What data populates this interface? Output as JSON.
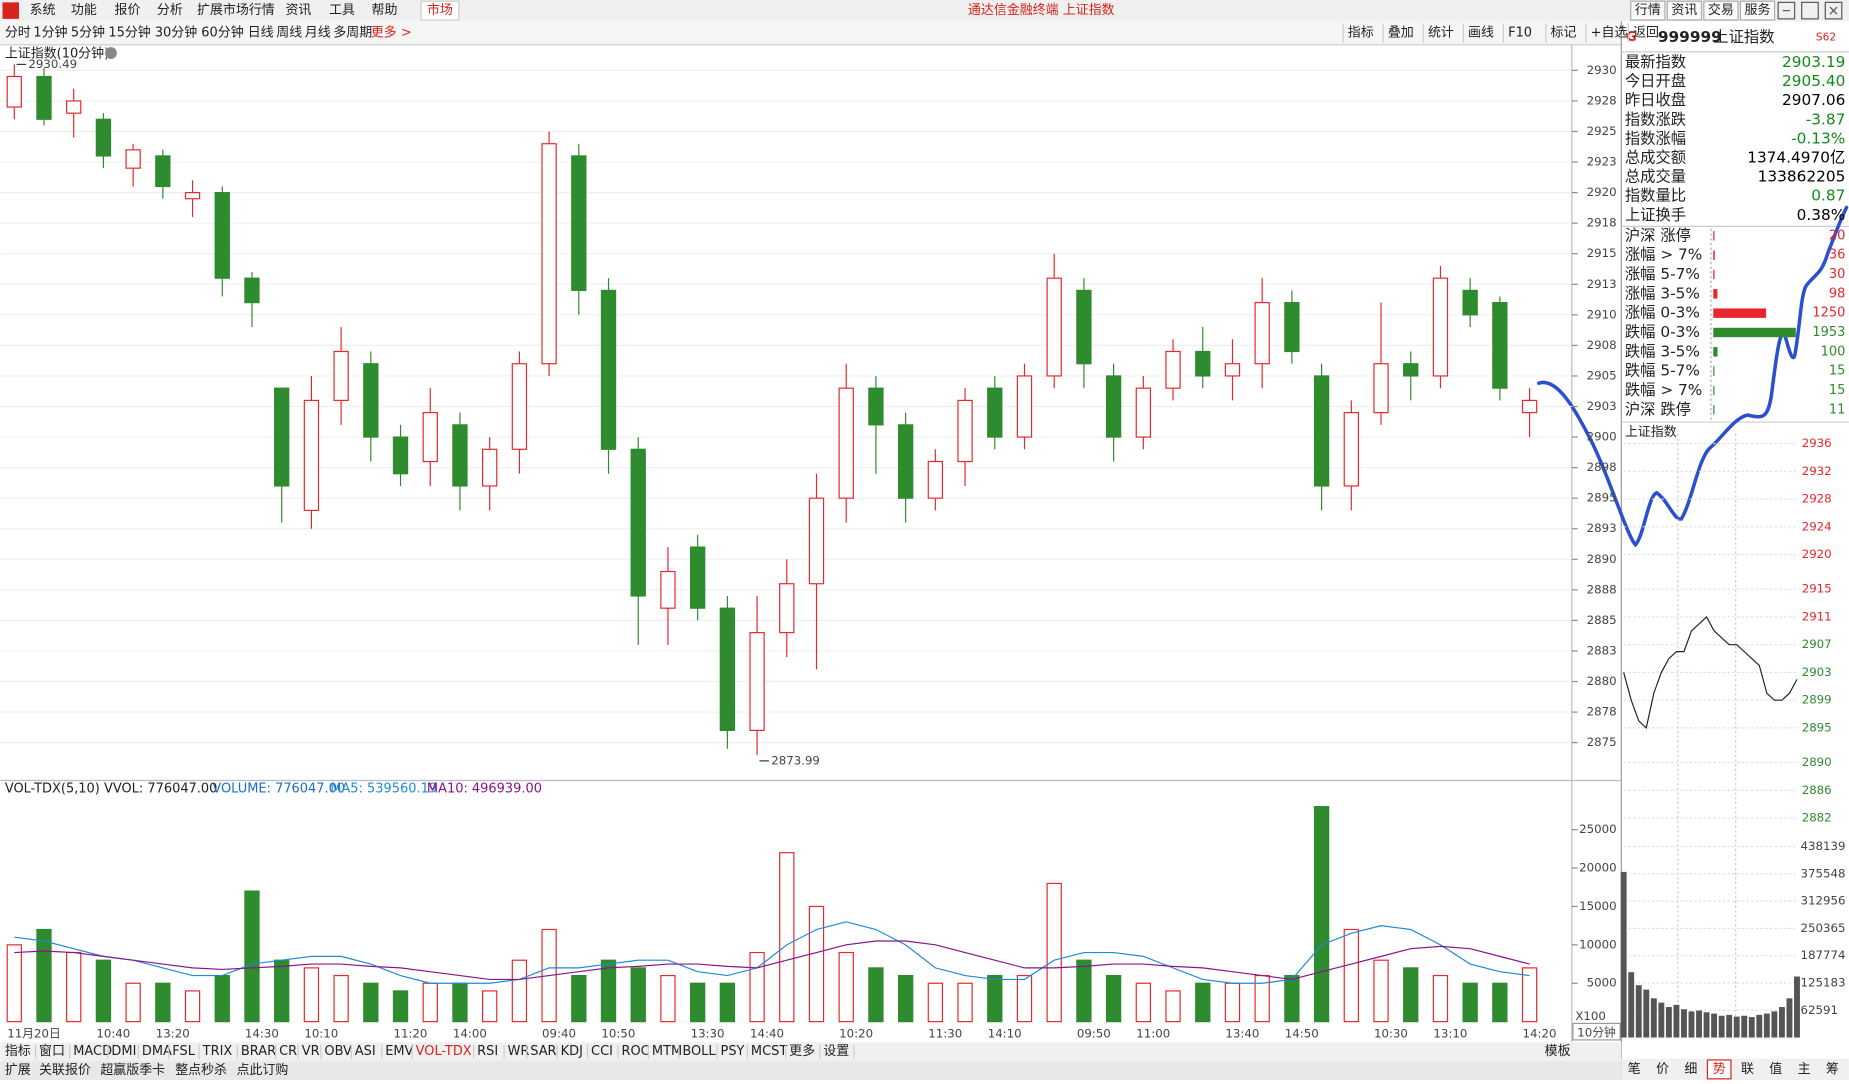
{
  "menu": [
    "系统",
    "功能",
    "报价",
    "分析",
    "扩展市场行情",
    "资讯",
    "工具",
    "帮助"
  ],
  "market_tab": "市场",
  "window_title": "通达信金融终端 上证指数",
  "top_buttons": [
    "行情",
    "资讯",
    "交易",
    "服务"
  ],
  "periods": [
    "分时",
    "1分钟",
    "5分钟",
    "15分钟",
    "30分钟",
    "60分钟",
    "日线",
    "周线",
    "月线",
    "多周期"
  ],
  "more": "更多 >",
  "tools": [
    "指标",
    "叠加",
    "统计",
    "画线",
    "F10",
    "标记",
    "+自选",
    "返回"
  ],
  "chart_data": [
    {
      "type": "candlestick",
      "title": "上证指数(10分钟)",
      "categories": [
        "11月20日",
        null,
        null,
        "10:40",
        null,
        "13:20",
        null,
        null,
        "14:30",
        null,
        "10:10",
        null,
        null,
        "11:20",
        null,
        "14:00",
        null,
        null,
        "09:40",
        null,
        "10:50",
        null,
        null,
        "13:30",
        null,
        "14:40",
        null,
        null,
        "10:20",
        null,
        null,
        "11:30",
        null,
        "14:10",
        null,
        null,
        "09:50",
        null,
        "11:00",
        null,
        null,
        "13:40",
        null,
        "14:50",
        null,
        null,
        "10:30",
        null,
        "13:10",
        null,
        null,
        "14:20"
      ],
      "open": [
        2927,
        2929.5,
        2926.5,
        2926,
        2922,
        2923,
        2919.5,
        2920,
        2913,
        2904,
        2894,
        2903,
        2906,
        2900,
        2898,
        2901,
        2896,
        2899,
        2906,
        2923,
        2912,
        2899,
        2886,
        2891,
        2886,
        2876,
        2884,
        2888,
        2895,
        2904,
        2901,
        2895,
        2898,
        2904,
        2900,
        2905,
        2912,
        2905,
        2900,
        2904,
        2907,
        2905,
        2906,
        2911,
        2905,
        2896,
        2902,
        2906,
        2905,
        2912,
        2911,
        2902
      ],
      "high": [
        2930.49,
        2930.2,
        2928.5,
        2926.5,
        2924,
        2923.5,
        2921,
        2920.5,
        2913.5,
        2904,
        2905,
        2909,
        2907,
        2901,
        2904,
        2902,
        2900,
        2907,
        2925,
        2924,
        2913,
        2900,
        2891,
        2892,
        2887,
        2887,
        2890,
        2897,
        2906,
        2905,
        2902,
        2899,
        2904,
        2905,
        2906,
        2915,
        2913,
        2906,
        2905,
        2908,
        2909,
        2908,
        2913,
        2912,
        2906,
        2903,
        2911,
        2907,
        2914,
        2913,
        2911.5,
        2904
      ],
      "low": [
        2926,
        2925.5,
        2924.5,
        2922,
        2920.5,
        2919.5,
        2918,
        2911.5,
        2909,
        2893,
        2892.5,
        2901,
        2898,
        2896,
        2896,
        2894,
        2894,
        2897,
        2905,
        2910,
        2897,
        2883,
        2883,
        2885,
        2874.5,
        2873.99,
        2882,
        2881,
        2893,
        2897,
        2893,
        2894,
        2896,
        2899,
        2899,
        2904,
        2904,
        2898,
        2899,
        2903,
        2904,
        2903,
        2904,
        2906,
        2894,
        2894,
        2901,
        2903,
        2904,
        2909,
        2903,
        2900
      ],
      "close": [
        2929.5,
        2926,
        2927.5,
        2923,
        2923.5,
        2920.5,
        2920,
        2913,
        2911,
        2896,
        2903,
        2907,
        2900,
        2897,
        2902,
        2896,
        2899,
        2906,
        2924,
        2912,
        2899,
        2887,
        2889,
        2886,
        2876,
        2884,
        2888,
        2895,
        2904,
        2901,
        2895,
        2898,
        2903,
        2900,
        2905,
        2913,
        2906,
        2900,
        2904,
        2907,
        2905,
        2906,
        2911,
        2907,
        2896,
        2902,
        2906,
        2905,
        2913,
        2910,
        2904,
        2903
      ],
      "up_color": "#e8262b",
      "down_color": "#2e8b2e",
      "max_label": 2930.49,
      "min_label": 2873.99,
      "ylim": [
        2871.9,
        2931.9
      ],
      "grid": true,
      "yticks": [
        2930,
        {
          "value": 2927.5,
          "label": "2928"
        },
        2925,
        {
          "value": 2922.5,
          "label": "2923"
        },
        2920,
        {
          "value": 2917.5,
          "label": "2918"
        },
        2915,
        {
          "value": 2912.5,
          "label": "2913"
        },
        2910,
        {
          "value": 2907.5,
          "label": "2908"
        },
        2905,
        {
          "value": 2902.5,
          "label": "2903"
        },
        2900,
        {
          "value": 2897.5,
          "label": "2898"
        },
        2895,
        {
          "value": 2892.5,
          "label": "2893"
        },
        2890,
        {
          "value": 2887.5,
          "label": "2888"
        },
        2885,
        {
          "value": 2882.5,
          "label": "2883"
        },
        2880,
        {
          "value": 2877.5,
          "label": "2878"
        },
        2875
      ]
    },
    {
      "type": "bar",
      "title": "VOL-TDX(5,10) VVOL: 776047.00",
      "scale_label": "X100",
      "period_label": "10分钟",
      "series": [
        {
          "name": "VOLUME: 776047.00",
          "color": "#1a6fc4",
          "values": [
            10000,
            12000,
            9000,
            8000,
            5000,
            5000,
            4000,
            6000,
            17000,
            8000,
            7000,
            6000,
            5000,
            4000,
            5000,
            5000,
            4000,
            8000,
            12000,
            6000,
            8000,
            7000,
            6000,
            5000,
            5000,
            9000,
            22000,
            15000,
            9000,
            7000,
            6000,
            5000,
            5000,
            6000,
            6000,
            18000,
            8000,
            6000,
            5000,
            4000,
            5000,
            5000,
            6000,
            6000,
            28000,
            12000,
            8000,
            7000,
            6000,
            5000,
            5000,
            7000
          ]
        },
        {
          "name": "MA5: 539560.19",
          "color": "#1f8ad6",
          "values": [
            11000,
            10500,
            9500,
            8500,
            8000,
            7000,
            6000,
            6000,
            7500,
            8000,
            8500,
            8500,
            7500,
            6000,
            5000,
            5000,
            5000,
            5500,
            7000,
            7000,
            7500,
            8000,
            8000,
            6500,
            6000,
            7000,
            10000,
            12000,
            13000,
            12000,
            10000,
            7000,
            6000,
            5500,
            5500,
            8000,
            9000,
            9000,
            8500,
            7000,
            5500,
            5000,
            5000,
            5500,
            10000,
            11500,
            12500,
            12000,
            10000,
            7500,
            6500,
            6000
          ]
        },
        {
          "name": "MA10: 496939.00",
          "color": "#8a148a",
          "values": [
            9000,
            9200,
            9000,
            8500,
            8000,
            7500,
            7000,
            6800,
            7000,
            7200,
            7500,
            7500,
            7200,
            7000,
            6500,
            6000,
            5500,
            5500,
            6000,
            6500,
            7000,
            7200,
            7500,
            7500,
            7200,
            7000,
            8000,
            9000,
            10000,
            10500,
            10500,
            10000,
            9000,
            8000,
            7000,
            7000,
            7200,
            7500,
            7500,
            7200,
            7000,
            6500,
            6000,
            5500,
            6500,
            7500,
            8500,
            9500,
            9800,
            9500,
            8500,
            7500
          ]
        }
      ],
      "ylim": [
        0,
        31400
      ],
      "yticks": [
        5000,
        10000,
        15000,
        20000,
        25000
      ]
    },
    {
      "type": "line",
      "title": "上证指数",
      "color": "#222222",
      "values": [
        2903,
        2899,
        2896,
        2895,
        2900,
        2903,
        2905,
        2906,
        2906,
        2909,
        2910,
        2911,
        2909,
        2908,
        2907,
        2907,
        2906,
        2905,
        2904,
        2900,
        2899,
        2899,
        2900,
        2902
      ],
      "ylim": [
        2880.1,
        2937.4
      ],
      "yticks": [
        2936,
        2932,
        2928,
        2924,
        2920,
        2915,
        2911,
        2907,
        2903,
        2899,
        2895,
        2890,
        2886,
        2882
      ]
    },
    {
      "type": "bar",
      "color": "#555555",
      "values": [
        380000,
        150000,
        120000,
        110000,
        90000,
        80000,
        70000,
        75000,
        65000,
        60000,
        62000,
        58000,
        55000,
        50000,
        52000,
        48000,
        50000,
        47000,
        52000,
        55000,
        60000,
        70000,
        90000,
        140000
      ],
      "ylim": [
        0,
        438139
      ],
      "yticks": [
        62591,
        125183,
        187774,
        250365,
        312956,
        375548,
        438139
      ]
    }
  ],
  "quote": {
    "flag": "G",
    "code": "999999",
    "name": "上证指数",
    "tag": "S62",
    "rows": [
      {
        "label": "最新指数",
        "value": "2903.19",
        "color": "#13891a"
      },
      {
        "label": "今日开盘",
        "value": "2905.40",
        "color": "#13891a"
      },
      {
        "label": "昨日收盘",
        "value": "2907.06",
        "color": "#000000"
      },
      {
        "label": "指数涨跌",
        "value": "-3.87",
        "color": "#13891a"
      },
      {
        "label": "指数涨幅",
        "value": "-0.13%",
        "color": "#13891a"
      },
      {
        "label": "总成交额",
        "value": "1374.4970亿",
        "color": "#000000"
      },
      {
        "label": "总成交量",
        "value": "133862205",
        "color": "#000000"
      },
      {
        "label": "指数量比",
        "value": "0.87",
        "color": "#13891a"
      },
      {
        "label": "上证换手",
        "value": "0.38%",
        "color": "#000000"
      }
    ]
  },
  "breadth": {
    "rows": [
      {
        "label": "沪深 涨停",
        "value": 20,
        "color": "#e8262b"
      },
      {
        "label": "涨幅 > 7%",
        "value": 36,
        "color": "#e8262b"
      },
      {
        "label": "涨幅 5-7%",
        "value": 30,
        "color": "#e8262b"
      },
      {
        "label": "涨幅 3-5%",
        "value": 98,
        "color": "#e8262b"
      },
      {
        "label": "涨幅 0-3%",
        "value": 1250,
        "color": "#e8262b"
      },
      {
        "label": "跌幅 0-3%",
        "value": 1953,
        "color": "#2e8b2e"
      },
      {
        "label": "跌幅 3-5%",
        "value": 100,
        "color": "#2e8b2e"
      },
      {
        "label": "跌幅 5-7%",
        "value": 15,
        "color": "#2e8b2e"
      },
      {
        "label": "跌幅 > 7%",
        "value": 15,
        "color": "#2e8b2e"
      },
      {
        "label": "沪深 跌停",
        "value": 11,
        "color": "#2e8b2e"
      }
    ]
  },
  "indicator_tabs": [
    "指标",
    "窗口",
    "MACD",
    "DMI",
    "DMA",
    "FSL",
    "TRIX",
    "BRAR",
    "CR",
    "VR",
    "OBV",
    "ASI",
    "EMV",
    "VOL-TDX",
    "RSI",
    "WR",
    "SAR",
    "KDJ",
    "CCI",
    "ROC",
    "MTM",
    "BOLL",
    "PSY",
    "MCST",
    "更多",
    "设置"
  ],
  "indicator_active": "VOL-TDX",
  "template": "模板",
  "status_bar": [
    "扩展",
    "关联报价",
    "超赢版季卡",
    "整点秒杀",
    "点此订购"
  ],
  "side_tabs": [
    "笔",
    "价",
    "细",
    "势",
    "联",
    "值",
    "主",
    "筹"
  ],
  "side_active": "势"
}
